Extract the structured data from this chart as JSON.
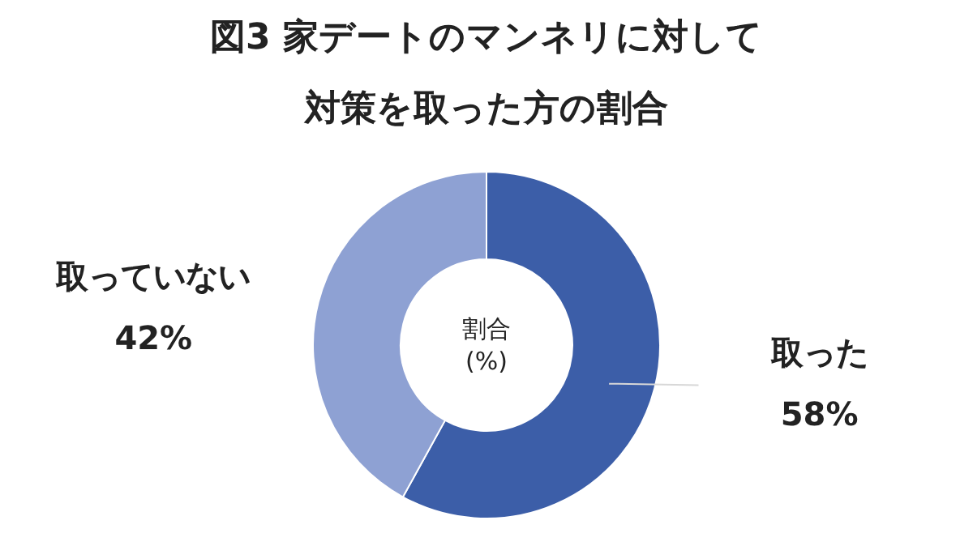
{
  "chart_data": {
    "type": "donut",
    "title": "図3 家デートのマンネリに対して対策を取った方の割合",
    "categories": [
      "取った",
      "取っていない"
    ],
    "values": [
      58,
      42
    ],
    "colors": [
      "#3c5ea8",
      "#8ea1d3"
    ],
    "value_labels": [
      "58%",
      "42%"
    ],
    "annotations": [
      "割合\n(%)"
    ]
  }
}
